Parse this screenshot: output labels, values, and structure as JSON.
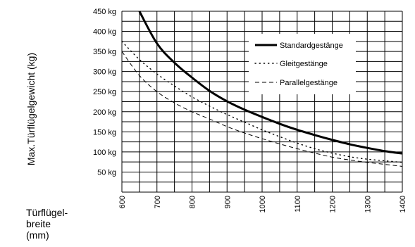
{
  "chart_data": {
    "type": "line",
    "ylabel": "Max.Türflügelgewicht (kg)",
    "xlabel_lines": [
      "Türflügel-",
      "breite",
      "(mm)"
    ],
    "xlim": [
      600,
      1400
    ],
    "ylim": [
      0,
      450
    ],
    "x_ticks": [
      600,
      700,
      800,
      900,
      1000,
      1100,
      1200,
      1300,
      1400
    ],
    "x_tick_labels": [
      "600",
      "700",
      "800",
      "900",
      "1000",
      "1100",
      "1200",
      "1300",
      "1400"
    ],
    "y_ticks": [
      50,
      100,
      150,
      200,
      250,
      300,
      350,
      400,
      450
    ],
    "y_tick_labels": [
      "50 kg",
      "100 kg",
      "150 kg",
      "200 kg",
      "250 kg",
      "300 kg",
      "350 kg",
      "400 kg",
      "450 kg"
    ],
    "grid": true,
    "legend_position": "top-right",
    "series": [
      {
        "name": "Standardgestänge",
        "style": "solid",
        "x": [
          650,
          700,
          750,
          800,
          850,
          900,
          950,
          1000,
          1050,
          1100,
          1150,
          1200,
          1250,
          1300,
          1350,
          1400
        ],
        "y": [
          450,
          370,
          322,
          285,
          252,
          226,
          205,
          187,
          170,
          155,
          142,
          130,
          119,
          110,
          102,
          96
        ]
      },
      {
        "name": "Gleitgestänge",
        "style": "dotted",
        "x": [
          600,
          650,
          700,
          750,
          800,
          850,
          900,
          950,
          1000,
          1050,
          1100,
          1150,
          1200,
          1250,
          1300,
          1350,
          1400
        ],
        "y": [
          375,
          330,
          294,
          264,
          237,
          214,
          193,
          174,
          155,
          138,
          122,
          108,
          97,
          88,
          82,
          78,
          74
        ]
      },
      {
        "name": "Parallelgestänge",
        "style": "dashed",
        "x": [
          600,
          650,
          700,
          750,
          800,
          850,
          900,
          950,
          1000,
          1050,
          1100,
          1150,
          1200,
          1250,
          1300,
          1350,
          1400
        ],
        "y": [
          350,
          290,
          250,
          222,
          200,
          182,
          163,
          147,
          133,
          120,
          108,
          97,
          87,
          80,
          74,
          69,
          64
        ]
      }
    ]
  }
}
